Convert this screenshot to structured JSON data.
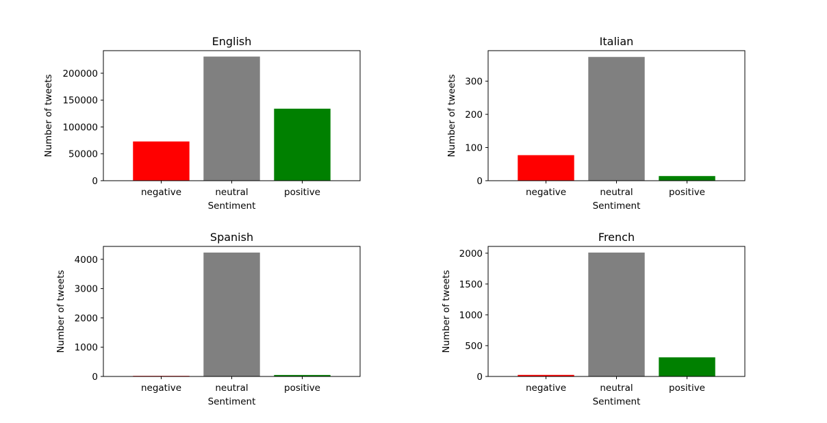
{
  "colors": {
    "negative": "#ff0000",
    "neutral": "#808080",
    "positive": "#008000"
  },
  "chart_data": [
    {
      "type": "bar",
      "title": "English",
      "xlabel": "Sentiment",
      "ylabel": "Number of tweets",
      "categories": [
        "negative",
        "neutral",
        "positive"
      ],
      "values": [
        73000,
        231000,
        134000
      ],
      "ylim": [
        0,
        242000
      ],
      "yticks": [
        0,
        50000,
        100000,
        150000,
        200000
      ],
      "ytick_labels": [
        "0",
        "50000",
        "100000",
        "150000",
        "200000"
      ]
    },
    {
      "type": "bar",
      "title": "Italian",
      "xlabel": "Sentiment",
      "ylabel": "Number of tweets",
      "categories": [
        "negative",
        "neutral",
        "positive"
      ],
      "values": [
        77,
        373,
        14
      ],
      "ylim": [
        0,
        392
      ],
      "yticks": [
        0,
        100,
        200,
        300
      ],
      "ytick_labels": [
        "0",
        "100",
        "200",
        "300"
      ]
    },
    {
      "type": "bar",
      "title": "Spanish",
      "xlabel": "Sentiment",
      "ylabel": "Number of tweets",
      "categories": [
        "negative",
        "neutral",
        "positive"
      ],
      "values": [
        20,
        4230,
        50
      ],
      "ylim": [
        0,
        4440
      ],
      "yticks": [
        0,
        1000,
        2000,
        3000,
        4000
      ],
      "ytick_labels": [
        "0",
        "1000",
        "2000",
        "3000",
        "4000"
      ]
    },
    {
      "type": "bar",
      "title": "French",
      "xlabel": "Sentiment",
      "ylabel": "Number of tweets",
      "categories": [
        "negative",
        "neutral",
        "positive"
      ],
      "values": [
        25,
        2010,
        310
      ],
      "ylim": [
        0,
        2110
      ],
      "yticks": [
        0,
        500,
        1000,
        1500,
        2000
      ],
      "ytick_labels": [
        "0",
        "500",
        "1000",
        "1500",
        "2000"
      ]
    }
  ]
}
